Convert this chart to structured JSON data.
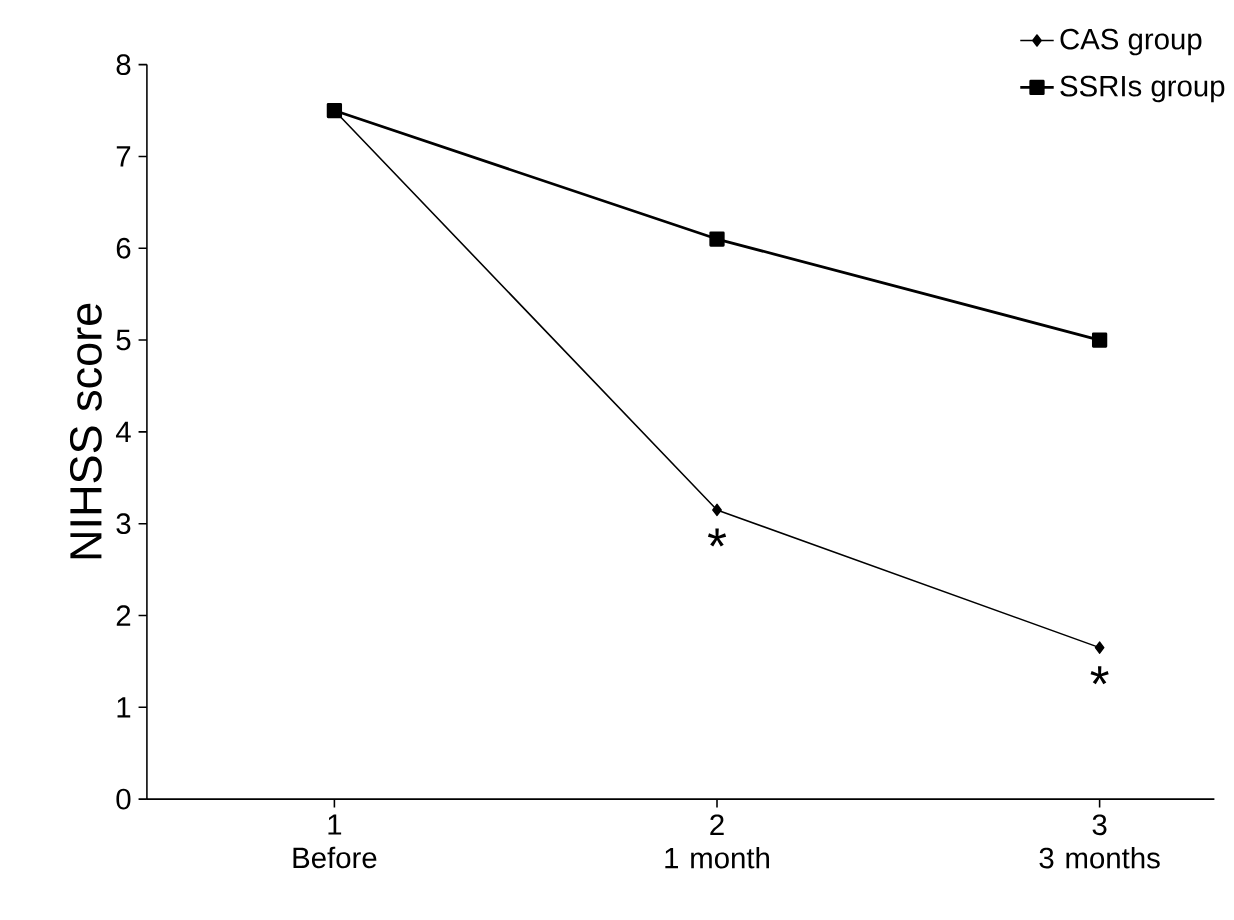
{
  "chart_data": {
    "type": "line",
    "ylabel": "NIHSS score",
    "categories": [
      "1\nBefore",
      "2\n1 month",
      "3\n3 months"
    ],
    "ylim": [
      0,
      8
    ],
    "yticks": [
      0,
      1,
      2,
      3,
      4,
      5,
      6,
      7,
      8
    ],
    "legend": "top right",
    "grid": false,
    "series": [
      {
        "name": "SSRIs group",
        "color": "#000000",
        "marker": "square",
        "values": [
          7.5,
          6.1,
          5.0
        ]
      },
      {
        "name": "CAS group",
        "color": "#000000",
        "marker": "diamond",
        "values": [
          7.5,
          3.15,
          1.65
        ]
      }
    ],
    "annotations": [
      "*",
      "*"
    ]
  }
}
